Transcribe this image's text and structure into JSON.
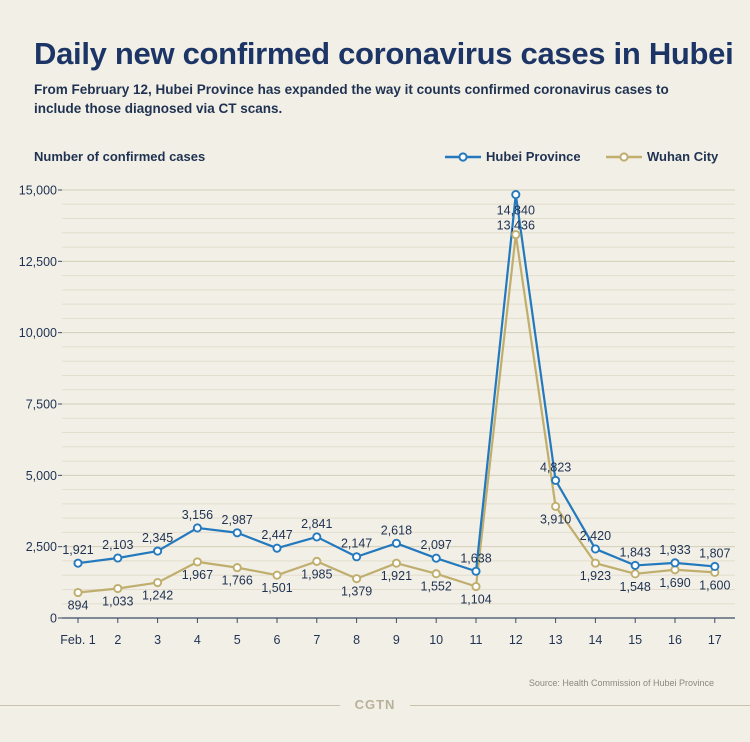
{
  "header": {
    "title": "Daily new confirmed coronavirus cases in Hubei",
    "subtitle": "From February 12, Hubei Province has expanded the way it counts confirmed coronavirus cases to include those diagnosed via CT scans."
  },
  "footer": {
    "source": "Source: Health Commission of Hubei Province",
    "brand": "CGTN"
  },
  "colors": {
    "hubei": "#2379be",
    "wuhan": "#bfae6d",
    "axis_text": "#1f3252",
    "grid": "#d9d4c3"
  },
  "chart_data": {
    "type": "line",
    "title": "Daily new confirmed coronavirus cases in Hubei",
    "ylabel": "Number of confirmed cases",
    "xlabel": "",
    "categories": [
      "Feb. 1",
      "2",
      "3",
      "4",
      "5",
      "6",
      "7",
      "8",
      "9",
      "10",
      "11",
      "12",
      "13",
      "14",
      "15",
      "16",
      "17"
    ],
    "yticks": [
      0,
      2500,
      5000,
      7500,
      10000,
      12500,
      15000
    ],
    "ytick_labels": [
      "0",
      "2,500",
      "5,000",
      "7,500",
      "10,000",
      "12,500",
      "15,000"
    ],
    "ylim": [
      0,
      15000
    ],
    "legend_position": "top-right",
    "series": [
      {
        "name": "Hubei Province",
        "color": "#2379be",
        "values": [
          1921,
          2103,
          2345,
          3156,
          2987,
          2447,
          2841,
          2147,
          2618,
          2097,
          1638,
          14840,
          4823,
          2420,
          1843,
          1933,
          1807
        ],
        "labels": [
          "1,921",
          "2,103",
          "2,345",
          "3,156",
          "2,987",
          "2,447",
          "2,841",
          "2,147",
          "2,618",
          "2,097",
          "1,638",
          "14,840",
          "4,823",
          "2,420",
          "1,843",
          "1,933",
          "1,807"
        ]
      },
      {
        "name": "Wuhan City",
        "color": "#bfae6d",
        "values": [
          894,
          1033,
          1242,
          1967,
          1766,
          1501,
          1985,
          1379,
          1921,
          1552,
          1104,
          13436,
          3910,
          1923,
          1548,
          1690,
          1600
        ],
        "labels": [
          "894",
          "1,033",
          "1,242",
          "1,967",
          "1,766",
          "1,501",
          "1,985",
          "1,379",
          "1,921",
          "1,552",
          "1,104",
          "13,436",
          "3,910",
          "1,923",
          "1,548",
          "1,690",
          "1,600"
        ]
      }
    ]
  }
}
